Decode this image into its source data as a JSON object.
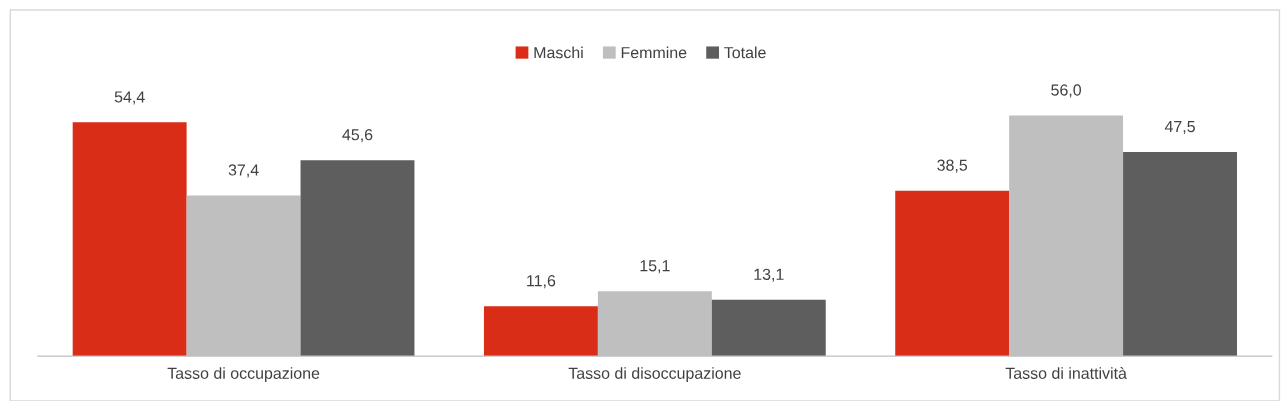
{
  "chart_data": {
    "type": "bar",
    "categories": [
      "Tasso di occupazione",
      "Tasso di disoccupazione",
      "Tasso di inattività"
    ],
    "series": [
      {
        "name": "Maschi",
        "color": "#d92d17",
        "values": [
          54.4,
          11.6,
          38.5
        ],
        "value_labels": [
          "54,4",
          "11,6",
          "38,5"
        ]
      },
      {
        "name": "Femmine",
        "color": "#bfbfbf",
        "values": [
          37.4,
          15.1,
          56.0
        ],
        "value_labels": [
          "37,4",
          "15,1",
          "56,0"
        ]
      },
      {
        "name": "Totale",
        "color": "#5e5e5e",
        "values": [
          45.6,
          13.1,
          47.5
        ],
        "value_labels": [
          "45,6",
          "13,1",
          "47,5"
        ]
      }
    ],
    "legend": "top",
    "grid": false
  }
}
